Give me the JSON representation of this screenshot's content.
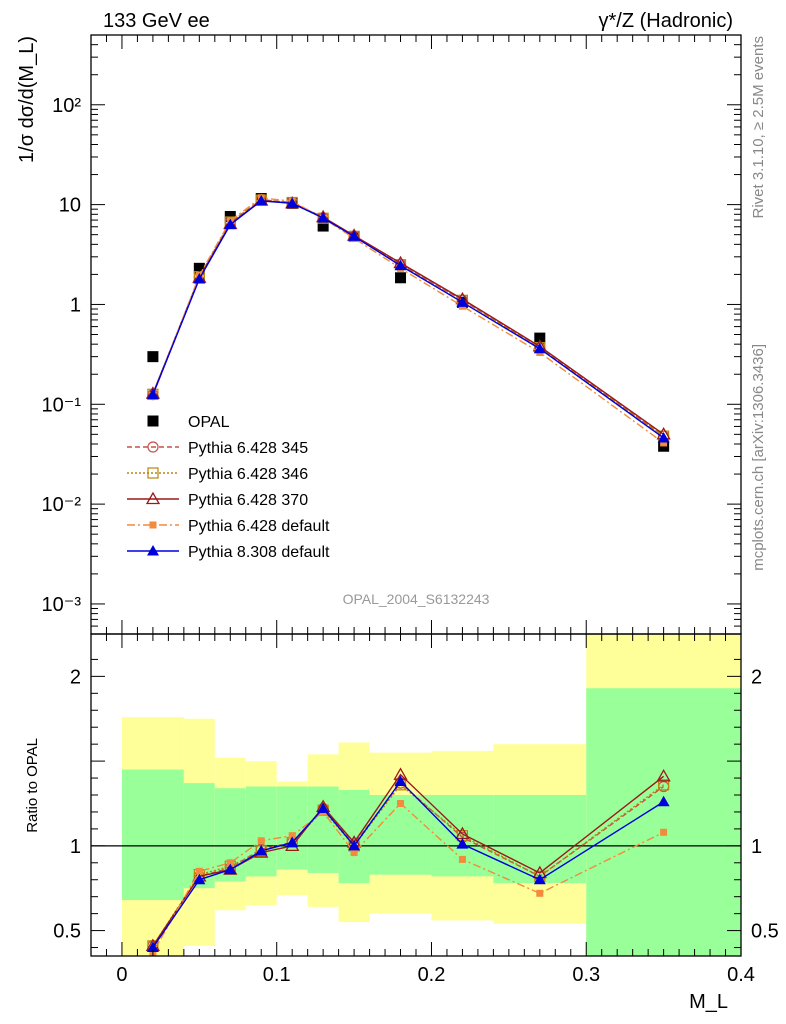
{
  "header": {
    "left": "133 GeV ee",
    "right": "γ*/Z (Hadronic)"
  },
  "side": {
    "rivet": "Rivet 3.1.10, ≥ 2.5M events",
    "mcplots": "mcplots.cern.ch [arXiv:1306.3436]"
  },
  "watermark": "OPAL_2004_S6132243",
  "chart_data": [
    {
      "type": "scatter",
      "panel": "main",
      "ylabel": "1/σ dσ/d(M_L)",
      "yscale": "log",
      "ylim": [
        0.0005,
        500
      ],
      "xlim": [
        -0.02,
        0.4
      ],
      "yticks": [
        "10⁻³",
        "10⁻²",
        "10⁻¹",
        "1",
        "10",
        "10²"
      ],
      "legend_position": "lower-left",
      "x": [
        0.02,
        0.05,
        0.07,
        0.09,
        0.11,
        0.13,
        0.15,
        0.18,
        0.22,
        0.27,
        0.35
      ],
      "series": [
        {
          "name": "OPAL",
          "color": "#000000",
          "values": [
            0.3,
            2.3,
            7.6,
            11.5,
            10.3,
            6.1,
            4.8,
            1.85,
            1.05,
            0.46,
            0.038
          ]
        },
        {
          "name": "Pythia 6.428 345",
          "color": "#c8504b",
          "values": [
            0.125,
            1.88,
            6.65,
            11.2,
            10.5,
            7.4,
            4.85,
            2.52,
            1.1,
            0.37,
            0.048
          ]
        },
        {
          "name": "Pythia 6.428 346",
          "color": "#b8860b",
          "values": [
            0.126,
            1.9,
            6.7,
            11.1,
            10.5,
            7.3,
            4.8,
            2.5,
            1.1,
            0.37,
            0.048
          ]
        },
        {
          "name": "Pythia 6.428 370",
          "color": "#9a1a1a",
          "values": [
            0.128,
            1.85,
            6.4,
            11.0,
            10.3,
            7.5,
            4.9,
            2.6,
            1.13,
            0.38,
            0.05
          ]
        },
        {
          "name": "Pythia 6.428 default",
          "color": "#f38b3c",
          "values": [
            0.122,
            1.95,
            6.9,
            11.7,
            10.8,
            7.3,
            4.6,
            2.3,
            0.96,
            0.33,
            0.041
          ]
        },
        {
          "name": "Pythia 8.308 default",
          "color": "#0000dd",
          "values": [
            0.125,
            1.8,
            6.3,
            10.9,
            10.3,
            7.35,
            4.8,
            2.45,
            1.05,
            0.36,
            0.046
          ]
        }
      ]
    },
    {
      "type": "line",
      "panel": "ratio",
      "ylabel": "Ratio to OPAL",
      "xlabel": "M_L",
      "ylim": [
        0.35,
        2.25
      ],
      "xlim": [
        -0.02,
        0.4
      ],
      "yticks": [
        "0.5",
        "1",
        "2"
      ],
      "xticks": [
        "0",
        "0.1",
        "0.2",
        "0.3",
        "0.4"
      ],
      "bands": {
        "edges": [
          0.0,
          0.04,
          0.06,
          0.08,
          0.1,
          0.12,
          0.14,
          0.16,
          0.2,
          0.24,
          0.3,
          0.4
        ],
        "stat_lo": [
          0.68,
          0.75,
          0.79,
          0.82,
          0.86,
          0.84,
          0.78,
          0.83,
          0.82,
          0.78,
          0.35
        ],
        "stat_hi": [
          1.45,
          1.37,
          1.34,
          1.35,
          1.35,
          1.35,
          1.33,
          1.3,
          1.3,
          1.3,
          1.93
        ],
        "tot_lo": [
          0.35,
          0.41,
          0.62,
          0.65,
          0.71,
          0.64,
          0.55,
          0.6,
          0.56,
          0.54,
          0.35
        ],
        "tot_hi": [
          1.76,
          1.75,
          1.52,
          1.5,
          1.38,
          1.54,
          1.61,
          1.55,
          1.56,
          1.6,
          2.25
        ]
      },
      "x": [
        0.02,
        0.05,
        0.07,
        0.09,
        0.11,
        0.13,
        0.15,
        0.18,
        0.22,
        0.27,
        0.35
      ],
      "series": [
        {
          "name": "Pythia 6.428 345",
          "color": "#c8504b",
          "values": [
            0.41,
            0.82,
            0.87,
            0.98,
            1.02,
            1.22,
            1.01,
            1.37,
            1.05,
            0.82,
            1.35
          ]
        },
        {
          "name": "Pythia 6.428 346",
          "color": "#b8860b",
          "values": [
            0.41,
            0.83,
            0.88,
            0.97,
            1.02,
            1.21,
            1.0,
            1.36,
            1.06,
            0.82,
            1.36
          ]
        },
        {
          "name": "Pythia 6.428 370",
          "color": "#9a1a1a",
          "values": [
            0.41,
            0.82,
            0.86,
            0.96,
            1.0,
            1.23,
            1.02,
            1.42,
            1.07,
            0.84,
            1.41
          ]
        },
        {
          "name": "Pythia 6.428 default",
          "color": "#f38b3c",
          "values": [
            0.37,
            0.85,
            0.9,
            1.03,
            1.06,
            1.2,
            0.96,
            1.25,
            0.92,
            0.72,
            1.08
          ]
        },
        {
          "name": "Pythia 8.308 default",
          "color": "#0000dd",
          "values": [
            0.4,
            0.8,
            0.86,
            0.97,
            1.02,
            1.22,
            1.0,
            1.38,
            1.01,
            0.8,
            1.26
          ]
        }
      ]
    }
  ]
}
